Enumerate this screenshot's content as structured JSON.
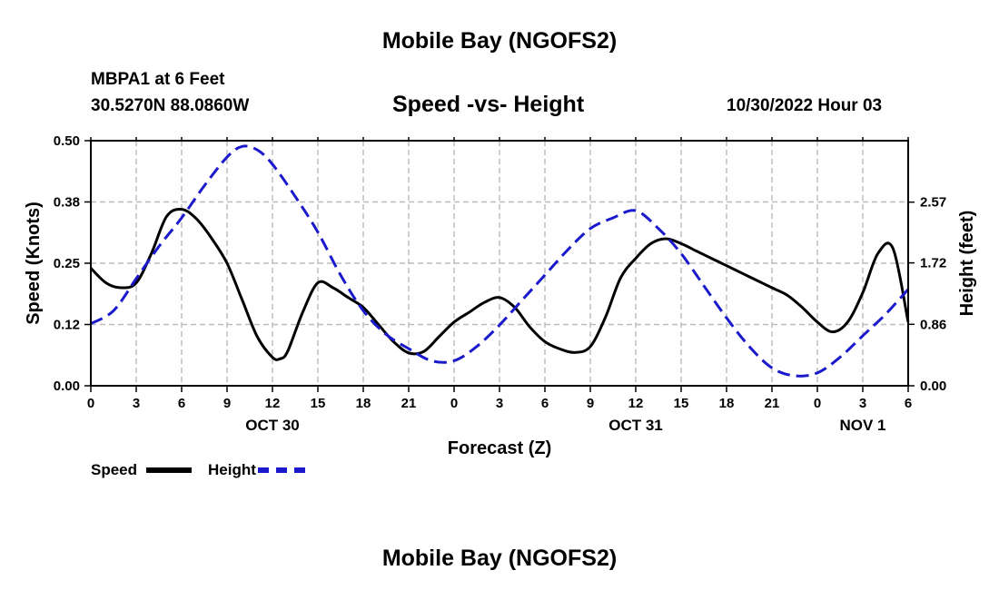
{
  "page": {
    "title": "Mobile Bay (NGOFS2)",
    "footer_title": "Mobile Bay (NGOFS2)",
    "station": "MBPA1 at 6 Feet",
    "coords": "30.5270N  88.0860W",
    "subtitle": "Speed -vs- Height",
    "timestamp": "10/30/2022 Hour 03"
  },
  "colors": {
    "speed": "#000000",
    "height": "#1a1acc",
    "grid": "#bdbdbd"
  },
  "chart_data": {
    "type": "line",
    "title": "Speed -vs- Height",
    "xlabel": "Forecast (Z)",
    "ylabel": "Speed (Knots)",
    "y2label": "Height (feet)",
    "x_range": [
      0,
      54
    ],
    "ylim": [
      0,
      0.5
    ],
    "y2lim": [
      0,
      3.43
    ],
    "y_ticks": [
      0,
      0.125,
      0.25,
      0.375,
      0.5
    ],
    "y_tick_labels": [
      "0.00",
      "0.12",
      "0.25",
      "0.38",
      "0.50"
    ],
    "y2_ticks": [
      0,
      0.86,
      1.72,
      2.57
    ],
    "y2_tick_labels": [
      "0.00",
      "0.86",
      "1.72",
      "2.57"
    ],
    "x_ticks": [
      0,
      3,
      6,
      9,
      12,
      15,
      18,
      21,
      24,
      27,
      30,
      33,
      36,
      39,
      42,
      45,
      48,
      51,
      54
    ],
    "x_tick_labels": [
      "0",
      "3",
      "6",
      "9",
      "12",
      "15",
      "18",
      "21",
      "0",
      "3",
      "6",
      "9",
      "12",
      "15",
      "18",
      "21",
      "0",
      "3",
      "6"
    ],
    "date_labels": [
      {
        "x": 12,
        "label": "OCT 30"
      },
      {
        "x": 36,
        "label": "OCT 31"
      },
      {
        "x": 51,
        "label": "NOV 1"
      }
    ],
    "grid": true,
    "legend": {
      "position": "bottom-left",
      "entries": [
        "Speed",
        "Height"
      ]
    },
    "series": [
      {
        "name": "Speed",
        "axis": "left",
        "x": [
          0,
          1,
          2,
          3,
          4,
          5,
          6,
          7,
          8,
          9,
          10,
          11,
          12,
          12.5,
          13,
          14,
          15,
          16,
          17,
          18,
          19,
          20,
          21,
          22,
          23,
          24,
          25,
          26,
          27,
          28,
          29,
          30,
          31,
          32,
          33,
          34,
          35,
          36,
          37,
          38,
          39,
          40,
          41,
          42,
          43,
          44,
          45,
          46,
          47,
          48,
          49,
          50,
          51,
          52,
          53,
          54
        ],
        "values": [
          0.24,
          0.21,
          0.2,
          0.21,
          0.27,
          0.345,
          0.36,
          0.34,
          0.3,
          0.25,
          0.175,
          0.1,
          0.058,
          0.055,
          0.07,
          0.15,
          0.21,
          0.2,
          0.18,
          0.16,
          0.125,
          0.09,
          0.067,
          0.07,
          0.1,
          0.13,
          0.15,
          0.17,
          0.18,
          0.16,
          0.12,
          0.09,
          0.075,
          0.068,
          0.08,
          0.14,
          0.22,
          0.26,
          0.29,
          0.3,
          0.29,
          0.275,
          0.26,
          0.245,
          0.23,
          0.215,
          0.2,
          0.185,
          0.16,
          0.13,
          0.11,
          0.13,
          0.19,
          0.27,
          0.28,
          0.13
        ]
      },
      {
        "name": "Height",
        "axis": "right",
        "x": [
          0,
          1.5,
          3,
          4.5,
          6,
          7.5,
          9,
          10,
          11,
          12,
          13.5,
          15,
          16.5,
          18,
          19.5,
          21,
          22.5,
          24,
          25.5,
          27,
          28.5,
          30,
          31.5,
          33,
          34.5,
          36,
          37.5,
          39,
          40.5,
          42,
          43.5,
          45,
          46.5,
          48,
          49.5,
          51,
          52.5,
          54
        ],
        "values": [
          0.87,
          1.05,
          1.5,
          1.95,
          2.35,
          2.8,
          3.2,
          3.35,
          3.3,
          3.1,
          2.65,
          2.15,
          1.55,
          1.05,
          0.72,
          0.52,
          0.35,
          0.35,
          0.55,
          0.85,
          1.2,
          1.55,
          1.9,
          2.2,
          2.35,
          2.45,
          2.2,
          1.85,
          1.4,
          0.95,
          0.55,
          0.25,
          0.14,
          0.18,
          0.4,
          0.7,
          1.0,
          1.35
        ]
      }
    ]
  },
  "legend": {
    "speed_label": "Speed",
    "height_label": "Height"
  }
}
